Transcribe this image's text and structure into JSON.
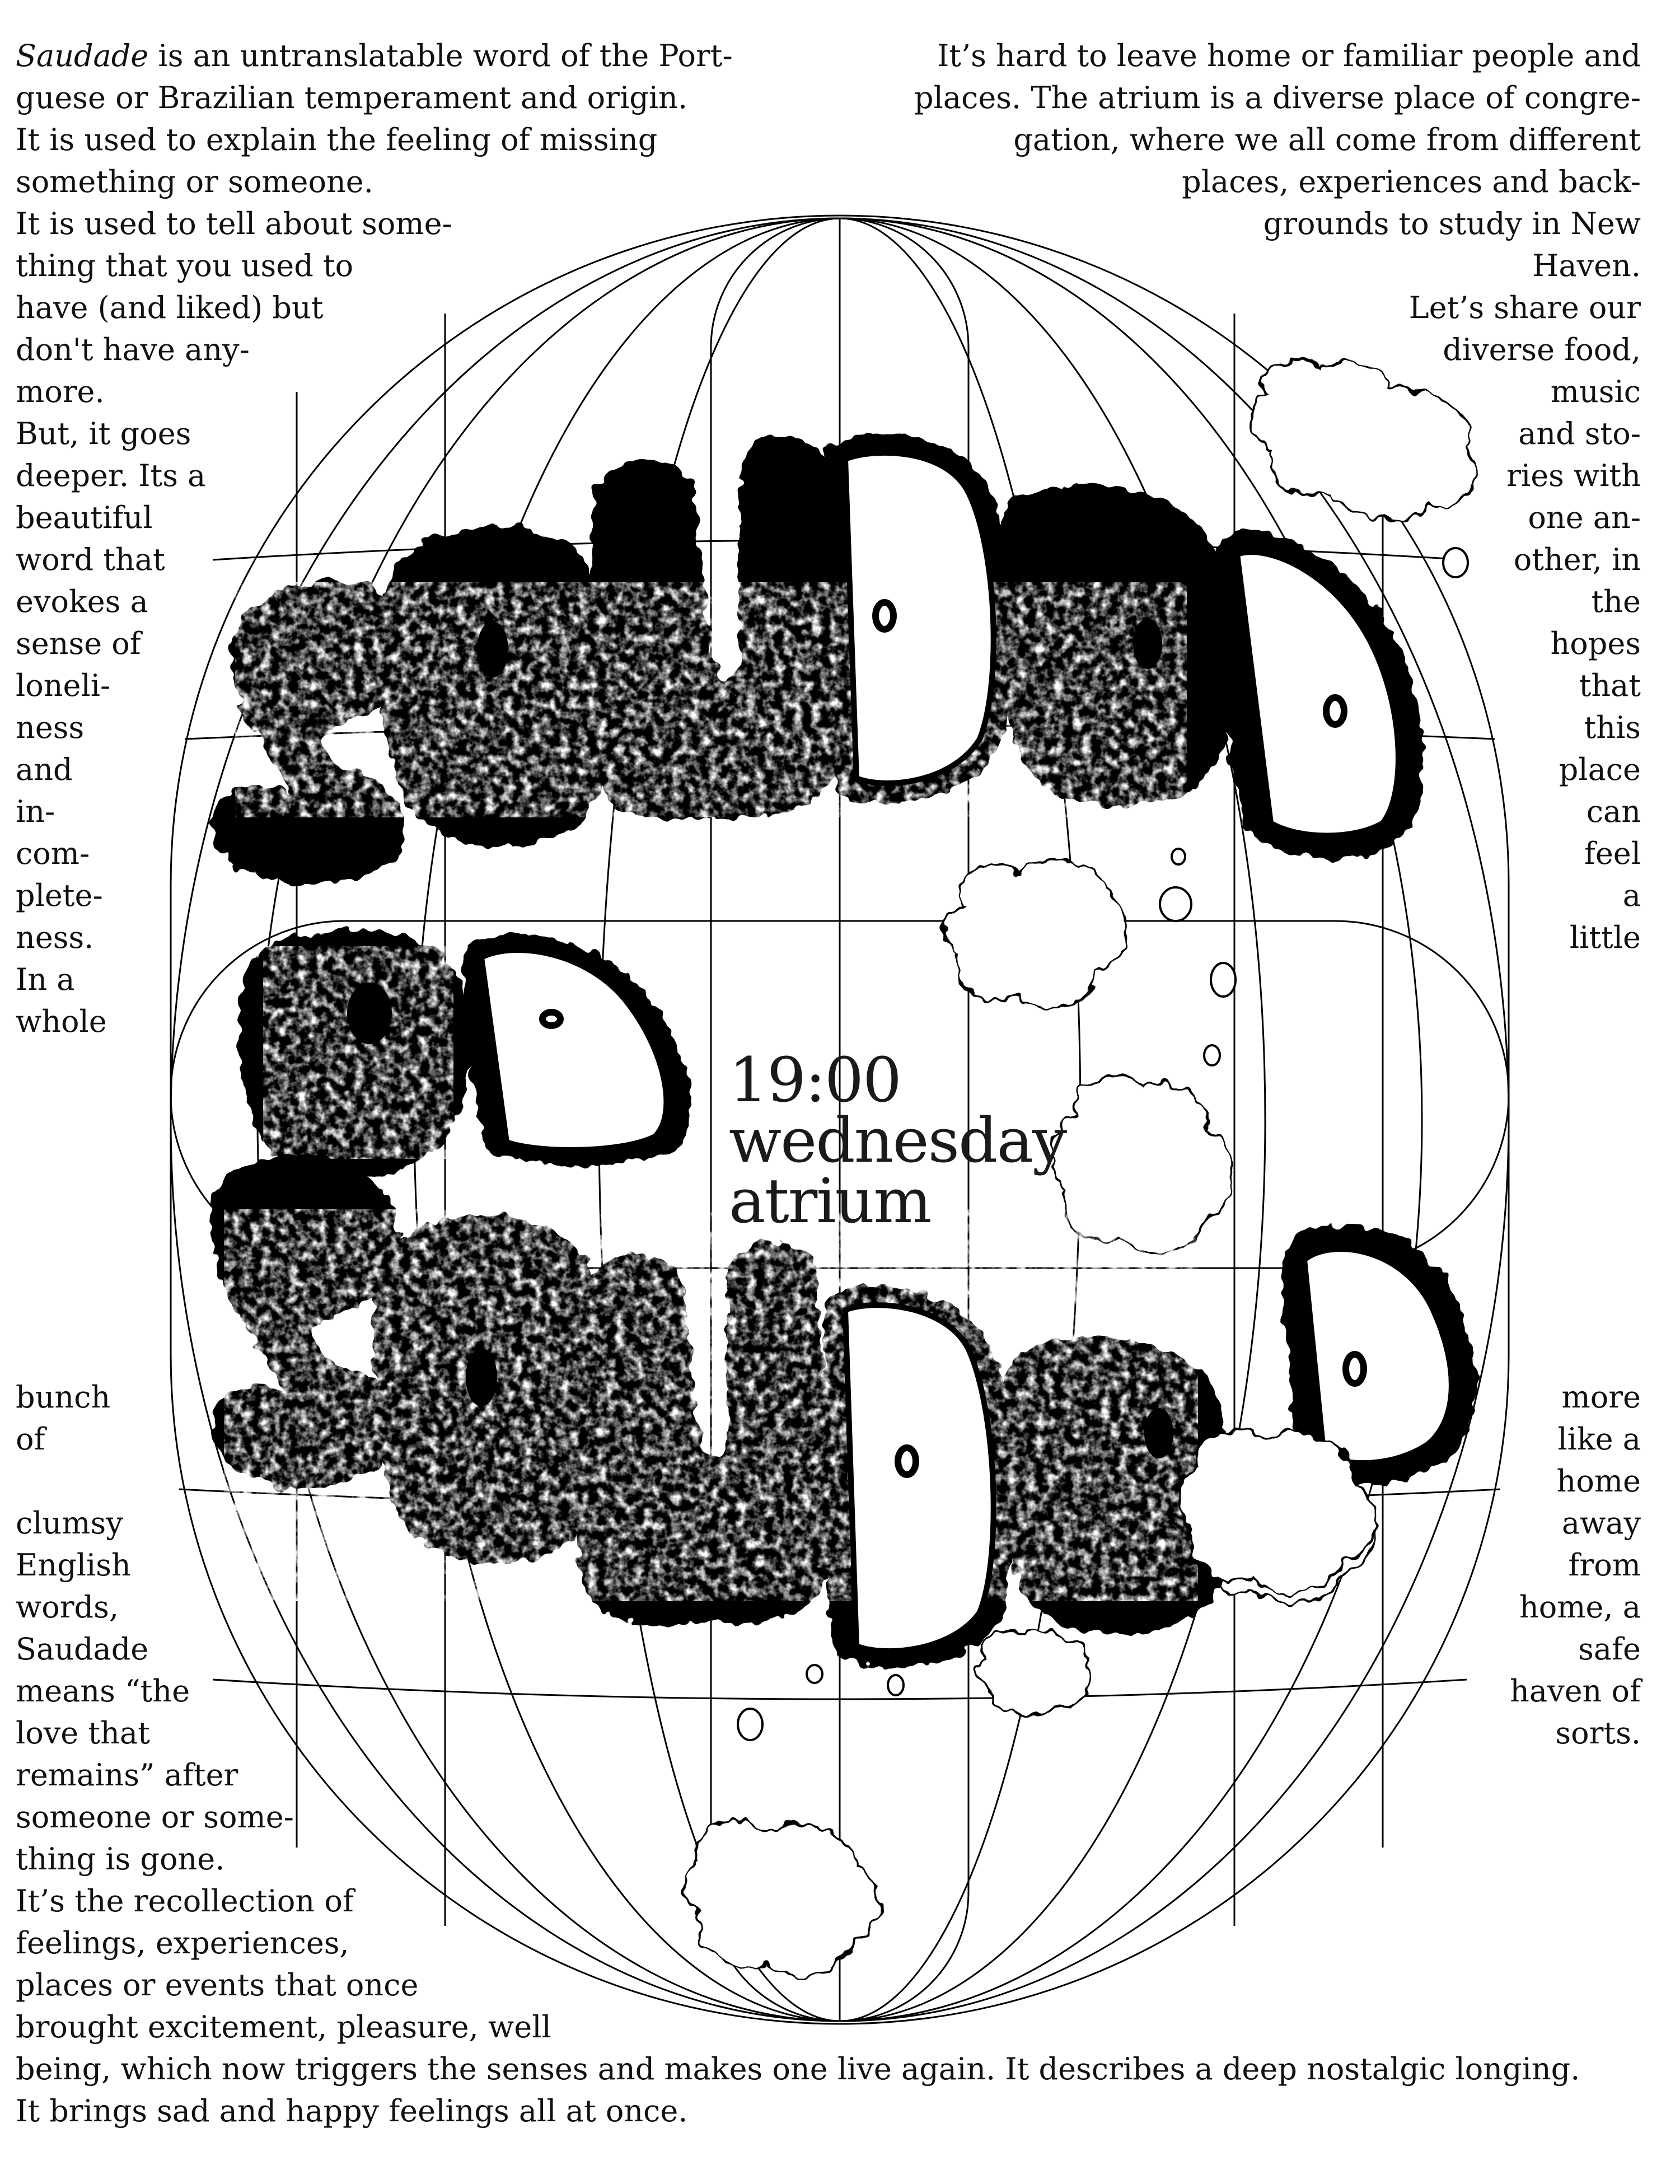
{
  "poster": {
    "intro_left": {
      "italic_word": "Saudade",
      "lines": [
        " is an untranslatable word of the Port-",
        "guese or Brazilian temperament and origin.",
        "It is used to explain the feeling of missing",
        "something or someone.",
        "It is used to tell about some-",
        "thing that you used to",
        "have (and liked) but",
        "don't have any-",
        "more.",
        "But, it goes",
        "deeper. Its a",
        "beautiful",
        "word that",
        "evokes a",
        "sense of",
        "loneli-",
        "ness",
        "and",
        "in-",
        "com-",
        "plete-",
        "ness.",
        "In a",
        "whole"
      ]
    },
    "lower_left": {
      "lines": [
        "bunch",
        "of",
        "",
        "clumsy",
        "English",
        "words,",
        "Saudade",
        "means “the",
        "love that",
        "remains” after",
        "someone or some-",
        "thing is gone.",
        "It’s the recollection of",
        "feelings, experiences,",
        "places or events that once",
        "brought excitement, pleasure, well",
        "being, which now triggers the senses and makes one live again. It describes a deep nostalgic longing.",
        "It brings sad and happy feelings all at once."
      ]
    },
    "intro_right": {
      "lines": [
        "It’s hard to leave home or familiar people and",
        "places. The atrium is a diverse place of congre-",
        "gation, where we all come from different",
        "places, experiences and back-",
        "grounds to study in New",
        "Haven.",
        "Let’s share our",
        "diverse food,",
        "music",
        "and sto-",
        "ries with",
        "one an-",
        "other, in",
        "the",
        "hopes",
        "that",
        "this",
        "place",
        "can",
        "feel",
        "a",
        "little"
      ]
    },
    "lower_right": {
      "lines": [
        "more",
        "like a",
        "home",
        "away",
        "from",
        "home, a",
        "safe",
        "haven of",
        "sorts."
      ]
    },
    "event": {
      "time": "19:00",
      "day": "wednesday",
      "place": "atrium"
    },
    "artwork": {
      "title_rows": [
        "SAUDAD",
        "DA",
        "SAUDAD"
      ],
      "ink_color": "#000000",
      "paper_color": "#ffffff"
    }
  }
}
